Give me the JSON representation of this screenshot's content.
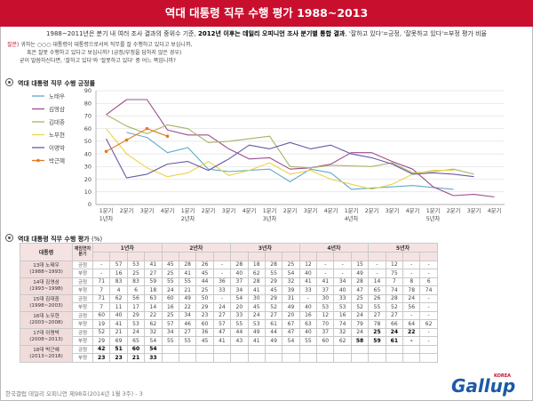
{
  "title": "역대 대통령 직무 수행 평가 1988~2013",
  "subtitle_pre": "1988~2011년은 분기 내 여러 조사 결과의 중위수 기준, ",
  "subtitle_bold": "2012년 이후는 데일리 오피니언 조사 분기별 통합 결과",
  "subtitle_post": ", '잘하고 있다'=긍정, '잘못하고 있다'=부정 평가 비율",
  "question_label": "질문)",
  "question_lines": [
    " 귀하는 ○○○ 대통령이 대통령으로서의 직무를 잘 수행하고 있다고 보십니까,",
    "혹은 잘못 수행하고 있다고 보십니까? (긍정/부정을 답하지 않은 경우)",
    "굳이 말씀하신다면, '잘하고 있다'와 '잘못하고 있다' 중 어느 쪽입니까?"
  ],
  "chart_section_title": "역대 대통령 직무 수행 긍정률",
  "table_section_title": "역대 대통령 직무 수행 평가",
  "table_section_unit": "(%)",
  "chart_data": {
    "type": "line",
    "ylim": [
      0,
      90
    ],
    "yticks": [
      0,
      10,
      20,
      30,
      40,
      50,
      60,
      70,
      80,
      90
    ],
    "grid": true,
    "legend_position": "left",
    "quarter_labels": [
      "1분기",
      "2분기",
      "3분기",
      "4분기",
      "1분기",
      "2분기",
      "3분기",
      "4분기",
      "1분기",
      "2분기",
      "3분기",
      "4분기",
      "1분기",
      "2분기",
      "3분기",
      "4분기",
      "1분기",
      "2분기",
      "3분기",
      "4분기"
    ],
    "year_labels": [
      "1년차",
      "2년차",
      "3년차",
      "4년차",
      "5년차"
    ],
    "series": [
      {
        "name": "노태우",
        "color": "#5fa9c9",
        "values": [
          null,
          57,
          53,
          41,
          45,
          28,
          26,
          null,
          28,
          18,
          28,
          25,
          12,
          null,
          null,
          15,
          null,
          12,
          null,
          null
        ]
      },
      {
        "name": "김영삼",
        "color": "#9a4f8e",
        "values": [
          71,
          83,
          83,
          59,
          55,
          55,
          44,
          36,
          37,
          28,
          29,
          32,
          41,
          41,
          34,
          28,
          14,
          7,
          8,
          6
        ]
      },
      {
        "name": "김대중",
        "color": "#a8b366",
        "values": [
          71,
          62,
          56,
          63,
          60,
          49,
          50,
          null,
          54,
          30,
          29,
          31,
          null,
          30,
          33,
          25,
          26,
          28,
          24,
          null
        ]
      },
      {
        "name": "노무현",
        "color": "#e9d44a",
        "values": [
          60,
          40,
          29,
          22,
          25,
          34,
          23,
          27,
          33,
          24,
          27,
          20,
          16,
          12,
          16,
          24,
          27,
          27,
          null,
          null
        ]
      },
      {
        "name": "이명박",
        "color": "#6a5aa8",
        "values": [
          52,
          21,
          24,
          32,
          34,
          27,
          36,
          47,
          44,
          49,
          44,
          47,
          40,
          37,
          32,
          24,
          25,
          24,
          22,
          null
        ]
      },
      {
        "name": "박근혜",
        "color": "#e07b1f",
        "values": [
          42,
          51,
          60,
          54,
          null,
          null,
          null,
          null,
          null,
          null,
          null,
          null,
          null,
          null,
          null,
          null,
          null,
          null,
          null,
          null
        ],
        "marker": "dot"
      }
    ]
  },
  "table": {
    "header_label": "대통령",
    "header_tenure": "재임연차 분기",
    "years": [
      "1년차",
      "2년차",
      "3년차",
      "4년차",
      "5년차"
    ],
    "type_pos": "긍정",
    "type_neg": "부정",
    "rows": [
      {
        "name": "13대 노태우",
        "period": "(1988~1993)",
        "pos": [
          "-",
          "57",
          "53",
          "41",
          "45",
          "28",
          "26",
          "-",
          "28",
          "18",
          "28",
          "25",
          "12",
          "-",
          "-",
          "15",
          "-",
          "12",
          "-",
          "-"
        ],
        "neg": [
          "-",
          "16",
          "25",
          "27",
          "25",
          "41",
          "45",
          "-",
          "40",
          "62",
          "55",
          "54",
          "40",
          "-",
          "-",
          "49",
          "-",
          "75",
          "-",
          "-"
        ]
      },
      {
        "name": "14대 김영삼",
        "period": "(1993~1998)",
        "pos": [
          "71",
          "83",
          "83",
          "59",
          "55",
          "55",
          "44",
          "36",
          "37",
          "28",
          "29",
          "32",
          "41",
          "41",
          "34",
          "28",
          "14",
          "7",
          "8",
          "6"
        ],
        "neg": [
          "7",
          "4",
          "6",
          "18",
          "24",
          "21",
          "25",
          "33",
          "34",
          "41",
          "45",
          "39",
          "33",
          "37",
          "40",
          "47",
          "65",
          "74",
          "78",
          "74"
        ]
      },
      {
        "name": "15대 김대중",
        "period": "(1998~2003)",
        "pos": [
          "71",
          "62",
          "56",
          "63",
          "60",
          "49",
          "50",
          "-",
          "54",
          "30",
          "29",
          "31",
          "-",
          "30",
          "33",
          "25",
          "26",
          "28",
          "24",
          "-"
        ],
        "neg": [
          "7",
          "11",
          "17",
          "14",
          "16",
          "22",
          "29",
          "24",
          "20",
          "45",
          "52",
          "49",
          "40",
          "53",
          "53",
          "52",
          "55",
          "52",
          "56",
          "-"
        ]
      },
      {
        "name": "16대 노무현",
        "period": "(2003~2008)",
        "pos": [
          "60",
          "40",
          "29",
          "22",
          "25",
          "34",
          "23",
          "27",
          "33",
          "24",
          "27",
          "20",
          "16",
          "12",
          "16",
          "24",
          "27",
          "27",
          "-",
          "-"
        ],
        "neg": [
          "19",
          "41",
          "53",
          "62",
          "57",
          "46",
          "60",
          "57",
          "55",
          "53",
          "61",
          "67",
          "63",
          "70",
          "74",
          "79",
          "78",
          "66",
          "64",
          "62"
        ]
      },
      {
        "name": "17대 이명박",
        "period": "(2008~2013)",
        "pos": [
          "52",
          "21",
          "24",
          "32",
          "34",
          "27",
          "36",
          "47",
          "44",
          "49",
          "44",
          "47",
          "40",
          "37",
          "32",
          "24",
          "25",
          "24",
          "22",
          "-"
        ],
        "neg": [
          "29",
          "69",
          "65",
          "54",
          "55",
          "55",
          "45",
          "41",
          "43",
          "41",
          "49",
          "54",
          "55",
          "60",
          "62",
          "58",
          "59",
          "61",
          "-",
          "-"
        ],
        "bold_pos": [
          16,
          17,
          18
        ],
        "bold_neg": [
          15,
          16,
          17,
          18
        ]
      },
      {
        "name": "18대 박근혜",
        "period": "(2013~2018)",
        "pos": [
          "42",
          "51",
          "60",
          "54",
          "",
          "",
          "",
          "",
          "",
          "",
          "",
          "",
          "",
          "",
          "",
          "",
          "",
          "",
          "",
          ""
        ],
        "neg": [
          "23",
          "23",
          "21",
          "33",
          "",
          "",
          "",
          "",
          "",
          "",
          "",
          "",
          "",
          "",
          "",
          "",
          "",
          "",
          "",
          ""
        ],
        "bold_pos": [
          0,
          1,
          2,
          3
        ],
        "bold_neg": [
          0,
          1,
          2,
          3
        ]
      }
    ]
  },
  "footer": "한국갤럽 데일리 오피니언 제98호(2014년 1월 3주) - 3",
  "logo": {
    "korea": "KOREA",
    "brand": "Gallup"
  }
}
